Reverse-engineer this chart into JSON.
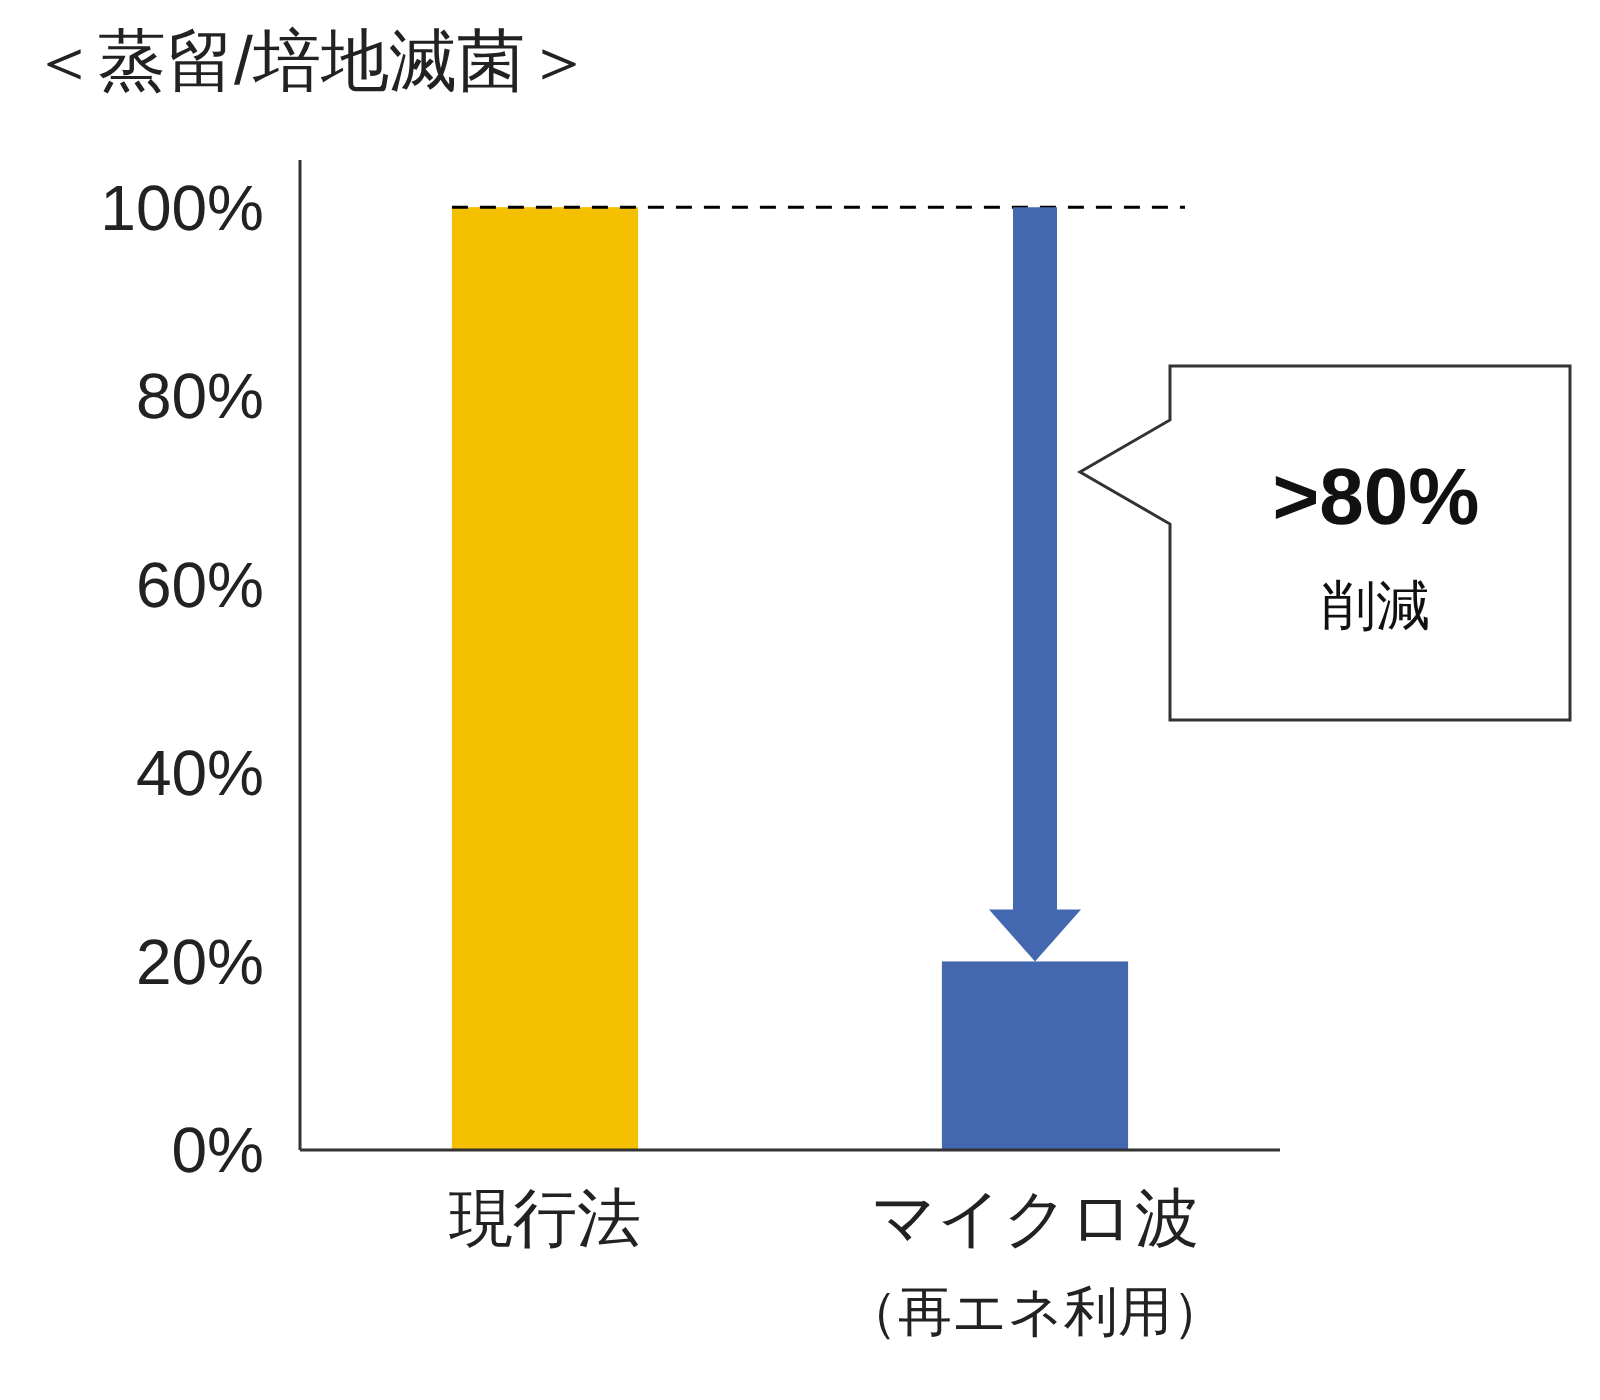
{
  "chart_data": {
    "type": "bar",
    "title": "＜蒸留/培地滅菌＞",
    "categories": [
      "現行法",
      "マイクロ波（再エネ利用）"
    ],
    "values": [
      100,
      20
    ],
    "colors": [
      "#f5c000",
      "#4468b0"
    ],
    "ylim": [
      0,
      105
    ],
    "yticks": [
      {
        "value": 0,
        "label": "0%"
      },
      {
        "value": 20,
        "label": "20%"
      },
      {
        "value": 40,
        "label": "40%"
      },
      {
        "value": 60,
        "label": "60%"
      },
      {
        "value": 80,
        "label": "80%"
      },
      {
        "value": 100,
        "label": "100%"
      }
    ],
    "ref_lines": [
      {
        "axis": "y",
        "value": 100,
        "color": "#000000",
        "line_style": "dashed"
      }
    ],
    "annotations": [
      ">80%",
      "削減"
    ],
    "grid": false
  }
}
